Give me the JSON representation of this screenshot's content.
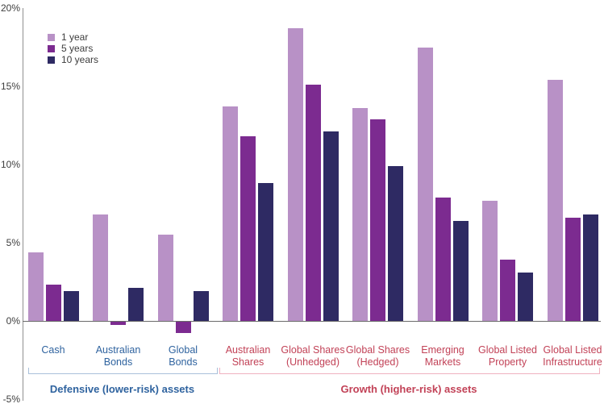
{
  "chart_data": {
    "type": "bar",
    "title": "",
    "xlabel": "",
    "ylabel": "",
    "ylim": [
      -5,
      20
    ],
    "grid": false,
    "legend_position": "top-left",
    "yticks": [
      {
        "label": "20%",
        "value": 20
      },
      {
        "label": "15%",
        "value": 15
      },
      {
        "label": "10%",
        "value": 10
      },
      {
        "label": "5%",
        "value": 5
      },
      {
        "label": "0%",
        "value": 0
      },
      {
        "label": "-5%",
        "value": -5
      }
    ],
    "categories": [
      [
        "Cash"
      ],
      [
        "Australian",
        "Bonds"
      ],
      [
        "Global",
        "Bonds"
      ],
      [
        "Australian",
        "Shares"
      ],
      [
        "Global Shares",
        "(Unhedged)"
      ],
      [
        "Global Shares",
        "(Hedged)"
      ],
      [
        "Emerging",
        "Markets"
      ],
      [
        "Global Listed",
        "Property"
      ],
      [
        "Global Listed",
        "Infrastructure"
      ]
    ],
    "series": [
      {
        "name": "1 year",
        "color": "#b891c6",
        "values": [
          4.4,
          6.8,
          5.5,
          13.7,
          18.7,
          13.6,
          17.5,
          7.7,
          15.4
        ]
      },
      {
        "name": "5 years",
        "color": "#7c2b90",
        "values": [
          2.3,
          -0.2,
          -0.7,
          11.8,
          15.1,
          12.9,
          7.9,
          3.9,
          6.6
        ]
      },
      {
        "name": "10 years",
        "color": "#2e2a63",
        "values": [
          1.9,
          2.1,
          1.9,
          8.8,
          12.1,
          9.9,
          6.4,
          3.1,
          6.8
        ]
      }
    ],
    "groups": [
      {
        "label": "Defensive (lower-risk) assets",
        "categories": [
          0,
          1,
          2
        ],
        "label_color": "#2f639f",
        "bracket_color": "#a9c0da"
      },
      {
        "label": "Growth (higher-risk) assets",
        "categories": [
          3,
          4,
          5,
          6,
          7,
          8
        ],
        "label_color": "#c24257",
        "bracket_color": "#efb2c0"
      }
    ],
    "axis_color": "#8f8f8f",
    "zero_line_color": "#6b6b6b",
    "tick_label_color": "#3d3d3d",
    "legend_text_color": "#3d3d3d"
  }
}
